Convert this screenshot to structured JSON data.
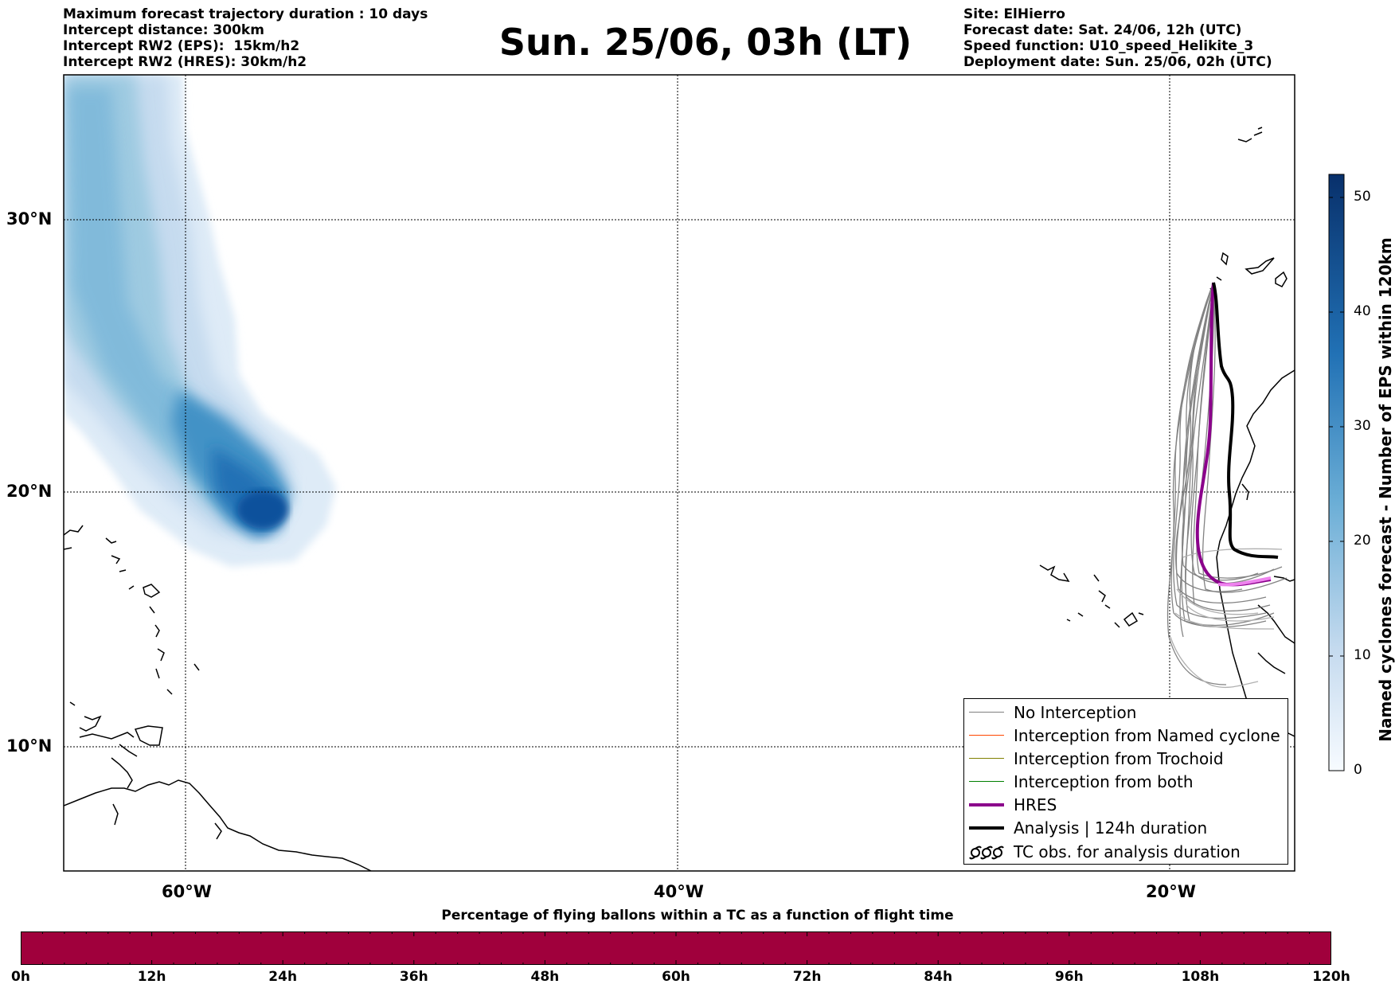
{
  "header": {
    "left_lines": [
      "Maximum forecast trajectory duration : 10 days",
      "Intercept distance: 300km",
      "Intercept RW2 (EPS):  15km/h2",
      "Intercept RW2 (HRES): 30km/h2"
    ],
    "title": "Sun. 25/06, 03h (LT)",
    "right_lines": [
      "Site: ElHierro",
      "Forecast date: Sat. 24/06, 12h (UTC)",
      "Speed function: U10_speed_Helikite_3",
      "Deployment date: Sun. 25/06, 02h (UTC)"
    ]
  },
  "map": {
    "lat_labels": [
      "30°N",
      "20°N",
      "10°N"
    ],
    "lon_labels": [
      "60°W",
      "40°W",
      "20°W"
    ],
    "colors": {
      "hres": "#8b008b",
      "hres_tail": "#ee82ee",
      "analysis": "#000000",
      "eps": "#6e6e6e",
      "named": "#ff4500",
      "trochoid": "#808000",
      "both": "#008000"
    }
  },
  "legend": {
    "items": [
      {
        "label": "No Interception",
        "key": "line",
        "color": "#808080"
      },
      {
        "label": "Interception from Named cyclone",
        "key": "line",
        "color": "#ff4500"
      },
      {
        "label": "Interception from Trochoid",
        "key": "line",
        "color": "#808000"
      },
      {
        "label": "Interception from both",
        "key": "line",
        "color": "#008000"
      },
      {
        "label": "HRES",
        "key": "thick",
        "color": "#8b008b"
      },
      {
        "label": "Analysis | 124h duration",
        "key": "thick",
        "color": "#000000"
      },
      {
        "label": "TC obs. for analysis duration",
        "key": "tc-symbol",
        "color": "#000000"
      }
    ]
  },
  "colorbar": {
    "label": "Named cyclones forecast - Number of EPS within 120km",
    "ticks": [
      "0",
      "10",
      "20",
      "30",
      "40",
      "50"
    ],
    "min": 0,
    "max": 52
  },
  "percentage_bar": {
    "title": "Percentage of flying ballons within a TC as a function of flight time",
    "color": "#a0003c",
    "ticks": [
      "0h",
      "12h",
      "24h",
      "36h",
      "48h",
      "60h",
      "72h",
      "84h",
      "96h",
      "108h",
      "120h"
    ]
  }
}
